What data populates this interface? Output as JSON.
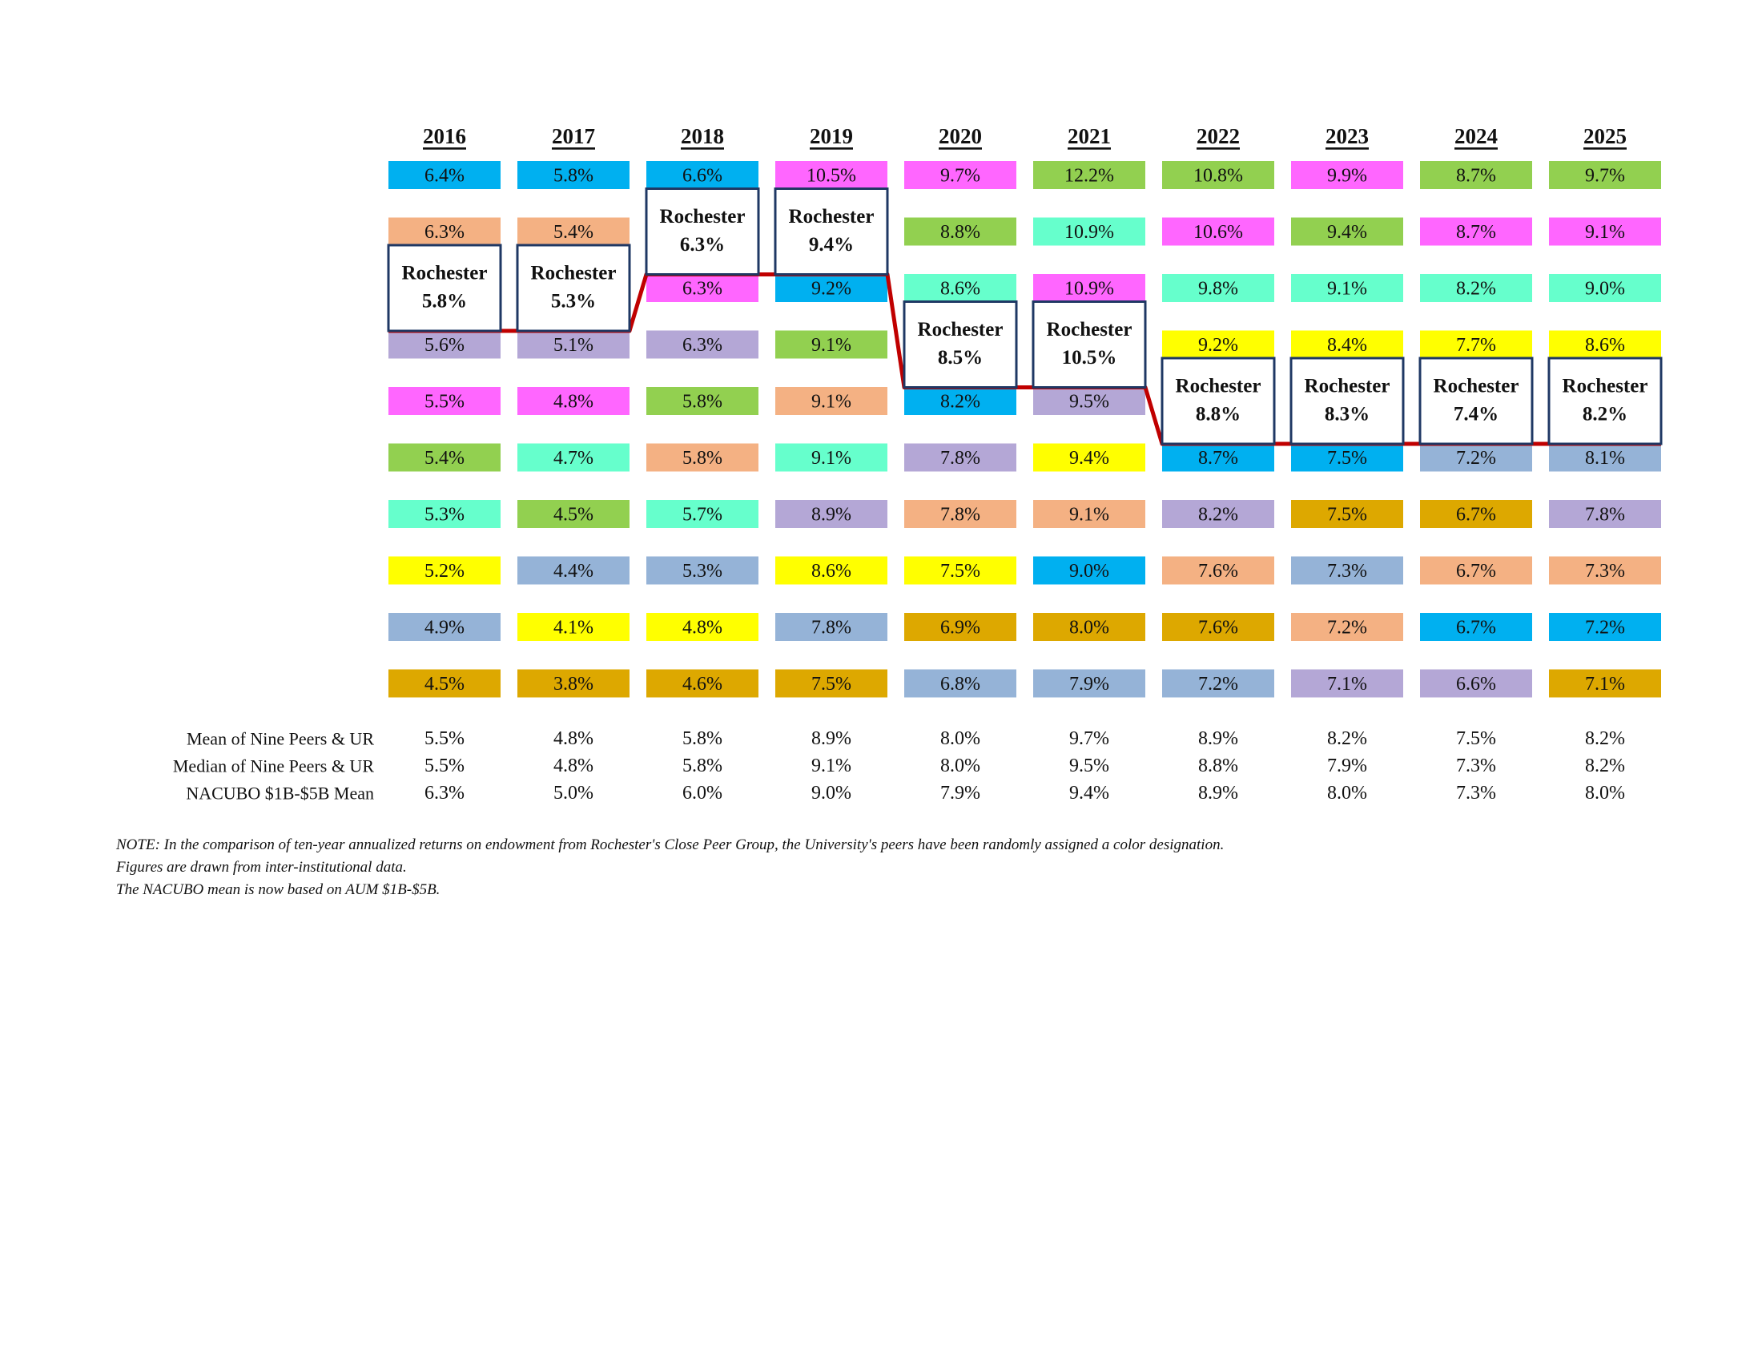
{
  "colors": {
    "blue": "#00B0F0",
    "peach": "#F4B183",
    "purple": "#B4A7D6",
    "magenta": "#FF66FF",
    "green": "#92D050",
    "mint": "#66FFCC",
    "yellow": "#FFFF00",
    "steel": "#95B3D7",
    "gold": "#DDA800",
    "rochester_line": "#C00000",
    "rochester_border": "#1F3864"
  },
  "chart_data": {
    "type": "table",
    "years": [
      "2016",
      "2017",
      "2018",
      "2019",
      "2020",
      "2021",
      "2022",
      "2023",
      "2024",
      "2025"
    ],
    "rochester_label": "Rochester",
    "columns": [
      {
        "year": "2016",
        "rochester_value": "5.8%",
        "rochester_rank": 2,
        "cells": [
          {
            "value": "6.4%",
            "color": "blue"
          },
          {
            "value": "6.3%",
            "color": "peach"
          },
          {
            "value": "5.6%",
            "color": "purple"
          },
          {
            "value": "5.5%",
            "color": "magenta"
          },
          {
            "value": "5.4%",
            "color": "green"
          },
          {
            "value": "5.3%",
            "color": "mint"
          },
          {
            "value": "5.2%",
            "color": "yellow"
          },
          {
            "value": "4.9%",
            "color": "steel"
          },
          {
            "value": "4.5%",
            "color": "gold"
          }
        ]
      },
      {
        "year": "2017",
        "rochester_value": "5.3%",
        "rochester_rank": 2,
        "cells": [
          {
            "value": "5.8%",
            "color": "blue"
          },
          {
            "value": "5.4%",
            "color": "peach"
          },
          {
            "value": "5.1%",
            "color": "purple"
          },
          {
            "value": "4.8%",
            "color": "magenta"
          },
          {
            "value": "4.7%",
            "color": "mint"
          },
          {
            "value": "4.5%",
            "color": "green"
          },
          {
            "value": "4.4%",
            "color": "steel"
          },
          {
            "value": "4.1%",
            "color": "yellow"
          },
          {
            "value": "3.8%",
            "color": "gold"
          }
        ]
      },
      {
        "year": "2018",
        "rochester_value": "6.3%",
        "rochester_rank": 1,
        "cells": [
          {
            "value": "6.6%",
            "color": "blue"
          },
          {
            "value": "6.3%",
            "color": "magenta"
          },
          {
            "value": "6.3%",
            "color": "purple"
          },
          {
            "value": "5.8%",
            "color": "green"
          },
          {
            "value": "5.8%",
            "color": "peach"
          },
          {
            "value": "5.7%",
            "color": "mint"
          },
          {
            "value": "5.3%",
            "color": "steel"
          },
          {
            "value": "4.8%",
            "color": "yellow"
          },
          {
            "value": "4.6%",
            "color": "gold"
          }
        ]
      },
      {
        "year": "2019",
        "rochester_value": "9.4%",
        "rochester_rank": 1,
        "cells": [
          {
            "value": "10.5%",
            "color": "magenta"
          },
          {
            "value": "9.2%",
            "color": "blue"
          },
          {
            "value": "9.1%",
            "color": "green"
          },
          {
            "value": "9.1%",
            "color": "peach"
          },
          {
            "value": "9.1%",
            "color": "mint"
          },
          {
            "value": "8.9%",
            "color": "purple"
          },
          {
            "value": "8.6%",
            "color": "yellow"
          },
          {
            "value": "7.8%",
            "color": "steel"
          },
          {
            "value": "7.5%",
            "color": "gold"
          }
        ]
      },
      {
        "year": "2020",
        "rochester_value": "8.5%",
        "rochester_rank": 3,
        "cells": [
          {
            "value": "9.7%",
            "color": "magenta"
          },
          {
            "value": "8.8%",
            "color": "green"
          },
          {
            "value": "8.6%",
            "color": "mint"
          },
          {
            "value": "8.2%",
            "color": "blue"
          },
          {
            "value": "7.8%",
            "color": "purple"
          },
          {
            "value": "7.8%",
            "color": "peach"
          },
          {
            "value": "7.5%",
            "color": "yellow"
          },
          {
            "value": "6.9%",
            "color": "gold"
          },
          {
            "value": "6.8%",
            "color": "steel"
          }
        ]
      },
      {
        "year": "2021",
        "rochester_value": "10.5%",
        "rochester_rank": 3,
        "cells": [
          {
            "value": "12.2%",
            "color": "green"
          },
          {
            "value": "10.9%",
            "color": "mint"
          },
          {
            "value": "10.9%",
            "color": "magenta"
          },
          {
            "value": "9.5%",
            "color": "purple"
          },
          {
            "value": "9.4%",
            "color": "yellow"
          },
          {
            "value": "9.1%",
            "color": "peach"
          },
          {
            "value": "9.0%",
            "color": "blue"
          },
          {
            "value": "8.0%",
            "color": "gold"
          },
          {
            "value": "7.9%",
            "color": "steel"
          }
        ]
      },
      {
        "year": "2022",
        "rochester_value": "8.8%",
        "rochester_rank": 4,
        "cells": [
          {
            "value": "10.8%",
            "color": "green"
          },
          {
            "value": "10.6%",
            "color": "magenta"
          },
          {
            "value": "9.8%",
            "color": "mint"
          },
          {
            "value": "9.2%",
            "color": "yellow"
          },
          {
            "value": "8.7%",
            "color": "blue"
          },
          {
            "value": "8.2%",
            "color": "purple"
          },
          {
            "value": "7.6%",
            "color": "peach"
          },
          {
            "value": "7.6%",
            "color": "gold"
          },
          {
            "value": "7.2%",
            "color": "steel"
          }
        ]
      },
      {
        "year": "2023",
        "rochester_value": "8.3%",
        "rochester_rank": 4,
        "cells": [
          {
            "value": "9.9%",
            "color": "magenta"
          },
          {
            "value": "9.4%",
            "color": "green"
          },
          {
            "value": "9.1%",
            "color": "mint"
          },
          {
            "value": "8.4%",
            "color": "yellow"
          },
          {
            "value": "7.5%",
            "color": "blue"
          },
          {
            "value": "7.5%",
            "color": "gold"
          },
          {
            "value": "7.3%",
            "color": "steel"
          },
          {
            "value": "7.2%",
            "color": "peach"
          },
          {
            "value": "7.1%",
            "color": "purple"
          }
        ]
      },
      {
        "year": "2024",
        "rochester_value": "7.4%",
        "rochester_rank": 4,
        "cells": [
          {
            "value": "8.7%",
            "color": "green"
          },
          {
            "value": "8.7%",
            "color": "magenta"
          },
          {
            "value": "8.2%",
            "color": "mint"
          },
          {
            "value": "7.7%",
            "color": "yellow"
          },
          {
            "value": "7.2%",
            "color": "steel"
          },
          {
            "value": "6.7%",
            "color": "gold"
          },
          {
            "value": "6.7%",
            "color": "peach"
          },
          {
            "value": "6.7%",
            "color": "blue"
          },
          {
            "value": "6.6%",
            "color": "purple"
          }
        ]
      },
      {
        "year": "2025",
        "rochester_value": "8.2%",
        "rochester_rank": 4,
        "cells": [
          {
            "value": "9.7%",
            "color": "green"
          },
          {
            "value": "9.1%",
            "color": "magenta"
          },
          {
            "value": "9.0%",
            "color": "mint"
          },
          {
            "value": "8.6%",
            "color": "yellow"
          },
          {
            "value": "8.1%",
            "color": "steel"
          },
          {
            "value": "7.8%",
            "color": "purple"
          },
          {
            "value": "7.3%",
            "color": "peach"
          },
          {
            "value": "7.2%",
            "color": "blue"
          },
          {
            "value": "7.1%",
            "color": "gold"
          }
        ]
      }
    ],
    "summary_rows": [
      {
        "label": "Mean of Nine Peers & UR",
        "values": [
          "5.5%",
          "4.8%",
          "5.8%",
          "8.9%",
          "8.0%",
          "9.7%",
          "8.9%",
          "8.2%",
          "7.5%",
          "8.2%"
        ]
      },
      {
        "label": "Median of Nine Peers & UR",
        "values": [
          "5.5%",
          "4.8%",
          "5.8%",
          "9.1%",
          "8.0%",
          "9.5%",
          "8.8%",
          "7.9%",
          "7.3%",
          "8.2%"
        ]
      },
      {
        "label": "NACUBO $1B-$5B Mean",
        "values": [
          "6.3%",
          "5.0%",
          "6.0%",
          "9.0%",
          "7.9%",
          "9.4%",
          "8.9%",
          "8.0%",
          "7.3%",
          "8.0%"
        ]
      }
    ]
  },
  "notes": [
    "NOTE: In the comparison of ten-year annualized returns on endowment from Rochester's Close Peer Group, the University's peers have been randomly assigned  a color designation.",
    "Figures are drawn from inter-institutional data.",
    "The NACUBO mean is now based on AUM $1B-$5B."
  ]
}
